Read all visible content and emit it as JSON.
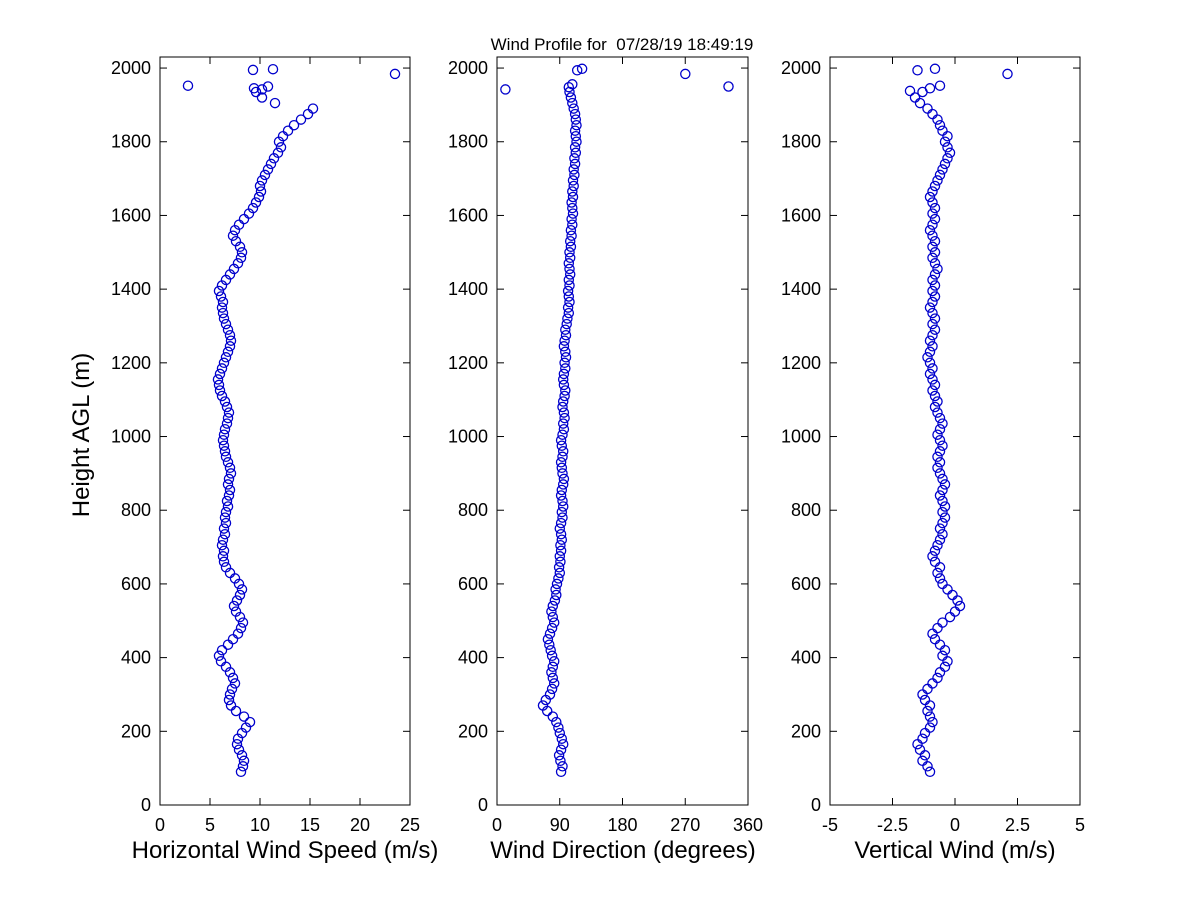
{
  "chart_data": {
    "type": "scatter",
    "title": "Wind Profile for  07/28/19 18:49:19",
    "ylabel": "Height AGL (m)",
    "ylim": [
      0,
      2000
    ],
    "yticks": [
      0,
      200,
      400,
      600,
      800,
      1000,
      1200,
      1400,
      1600,
      1800,
      2000
    ],
    "marker": {
      "shape": "circle-open",
      "color": "#0000CC",
      "size": 9
    },
    "heights": [
      90,
      105,
      120,
      135,
      150,
      165,
      180,
      195,
      210,
      225,
      240,
      255,
      270,
      285,
      300,
      315,
      330,
      345,
      360,
      375,
      390,
      405,
      420,
      435,
      450,
      465,
      480,
      495,
      510,
      525,
      540,
      555,
      570,
      585,
      600,
      615,
      630,
      645,
      660,
      675,
      690,
      705,
      720,
      735,
      750,
      765,
      780,
      795,
      810,
      825,
      840,
      855,
      870,
      885,
      900,
      915,
      930,
      945,
      960,
      975,
      990,
      1005,
      1020,
      1035,
      1050,
      1065,
      1080,
      1095,
      1110,
      1125,
      1140,
      1155,
      1170,
      1185,
      1200,
      1215,
      1230,
      1245,
      1260,
      1275,
      1290,
      1305,
      1320,
      1335,
      1350,
      1365,
      1380,
      1395,
      1410,
      1425,
      1440,
      1455,
      1470,
      1485,
      1500,
      1515,
      1530,
      1545,
      1560,
      1575,
      1590,
      1605,
      1620,
      1635,
      1650,
      1665,
      1680,
      1695,
      1710,
      1725,
      1740,
      1755,
      1770,
      1785,
      1800,
      1815,
      1830,
      1845,
      1860,
      1875,
      1890,
      1905,
      1920,
      1935
    ],
    "subplots": [
      {
        "id": "horizontal-wind-speed",
        "xlabel": "Horizontal Wind Speed (m/s)",
        "xlim": [
          0,
          25
        ],
        "xticks": [
          0,
          5,
          10,
          15,
          20,
          25
        ],
        "values": [
          8.1,
          8.3,
          8.4,
          8.2,
          7.9,
          7.7,
          7.8,
          8.2,
          8.6,
          9.0,
          8.4,
          7.6,
          7.1,
          6.9,
          7.0,
          7.2,
          7.5,
          7.3,
          7.0,
          6.6,
          6.1,
          5.9,
          6.2,
          6.8,
          7.3,
          7.8,
          8.1,
          8.3,
          8.0,
          7.6,
          7.4,
          7.7,
          8.0,
          8.2,
          7.9,
          7.5,
          7.0,
          6.6,
          6.4,
          6.3,
          6.4,
          6.2,
          6.3,
          6.5,
          6.4,
          6.6,
          6.5,
          6.6,
          6.8,
          6.7,
          6.9,
          7.0,
          6.8,
          6.9,
          7.1,
          7.0,
          6.8,
          6.6,
          6.5,
          6.4,
          6.3,
          6.4,
          6.5,
          6.7,
          6.8,
          6.9,
          6.7,
          6.5,
          6.2,
          6.0,
          5.9,
          5.8,
          6.0,
          6.2,
          6.4,
          6.6,
          6.8,
          7.0,
          7.1,
          7.0,
          6.8,
          6.6,
          6.4,
          6.3,
          6.2,
          6.3,
          6.1,
          5.9,
          6.2,
          6.6,
          7.0,
          7.4,
          7.8,
          8.1,
          8.2,
          8.0,
          7.6,
          7.3,
          7.5,
          7.9,
          8.4,
          8.9,
          9.3,
          9.6,
          9.9,
          10.1,
          10.0,
          10.2,
          10.5,
          10.8,
          11.1,
          11.4,
          11.8,
          12.1,
          11.9,
          12.3,
          12.8,
          13.4,
          14.1,
          14.8,
          15.3,
          11.5,
          10.2,
          9.6
        ],
        "extra_points": [
          [
            2.8,
            1952
          ],
          [
            10.8,
            1950
          ],
          [
            9.4,
            1945
          ],
          [
            10.2,
            1942
          ],
          [
            9.3,
            1995
          ],
          [
            11.3,
            1997
          ],
          [
            23.5,
            1984
          ]
        ]
      },
      {
        "id": "wind-direction",
        "xlabel": "Wind Direction (degrees)",
        "xlim": [
          0,
          360
        ],
        "xticks": [
          0,
          90,
          180,
          270,
          360
        ],
        "values": [
          92,
          94,
          91,
          89,
          92,
          95,
          93,
          90,
          88,
          85,
          80,
          72,
          66,
          70,
          76,
          79,
          82,
          80,
          78,
          80,
          82,
          79,
          77,
          75,
          73,
          76,
          79,
          82,
          80,
          78,
          80,
          83,
          85,
          84,
          86,
          88,
          90,
          89,
          91,
          90,
          92,
          91,
          93,
          92,
          90,
          92,
          94,
          93,
          95,
          94,
          92,
          93,
          95,
          96,
          94,
          93,
          92,
          94,
          95,
          93,
          92,
          94,
          96,
          95,
          97,
          96,
          94,
          95,
          97,
          98,
          96,
          95,
          96,
          98,
          97,
          99,
          98,
          96,
          97,
          99,
          98,
          100,
          101,
          103,
          102,
          104,
          103,
          102,
          104,
          103,
          105,
          104,
          103,
          105,
          104,
          106,
          105,
          107,
          106,
          108,
          107,
          109,
          108,
          107,
          109,
          108,
          110,
          109,
          111,
          110,
          112,
          111,
          113,
          112,
          114,
          113,
          112,
          114,
          113,
          112,
          110,
          108,
          106,
          104
        ],
        "extra_points": [
          [
            12,
            1942
          ],
          [
            103,
            1948
          ],
          [
            108,
            1956
          ],
          [
            332,
            1950
          ],
          [
            270,
            1984
          ],
          [
            115,
            1994
          ],
          [
            122,
            1998
          ]
        ]
      },
      {
        "id": "vertical-wind",
        "xlabel": "Vertical Wind (m/s)",
        "xlim": [
          -5,
          5
        ],
        "xticks": [
          -5,
          -2.5,
          0,
          2.5,
          5
        ],
        "values": [
          -1.0,
          -1.1,
          -1.3,
          -1.2,
          -1.4,
          -1.5,
          -1.3,
          -1.2,
          -1.0,
          -0.9,
          -1.0,
          -1.1,
          -1.0,
          -1.2,
          -1.3,
          -1.1,
          -0.9,
          -0.7,
          -0.6,
          -0.4,
          -0.3,
          -0.5,
          -0.4,
          -0.6,
          -0.8,
          -0.9,
          -0.7,
          -0.5,
          -0.2,
          0.0,
          0.2,
          0.1,
          -0.1,
          -0.3,
          -0.5,
          -0.6,
          -0.7,
          -0.6,
          -0.8,
          -0.9,
          -0.8,
          -0.7,
          -0.6,
          -0.5,
          -0.6,
          -0.5,
          -0.4,
          -0.5,
          -0.4,
          -0.5,
          -0.6,
          -0.5,
          -0.4,
          -0.5,
          -0.6,
          -0.7,
          -0.6,
          -0.7,
          -0.6,
          -0.5,
          -0.6,
          -0.7,
          -0.6,
          -0.5,
          -0.6,
          -0.7,
          -0.8,
          -0.7,
          -0.8,
          -0.9,
          -0.8,
          -0.9,
          -1.0,
          -0.9,
          -1.0,
          -1.1,
          -1.0,
          -0.9,
          -1.0,
          -0.9,
          -0.8,
          -0.9,
          -0.8,
          -0.9,
          -1.0,
          -0.9,
          -0.8,
          -0.9,
          -0.8,
          -0.9,
          -0.8,
          -0.7,
          -0.8,
          -0.9,
          -0.8,
          -0.9,
          -0.8,
          -0.9,
          -1.0,
          -0.9,
          -0.8,
          -0.9,
          -0.8,
          -0.9,
          -1.0,
          -0.9,
          -0.8,
          -0.7,
          -0.6,
          -0.5,
          -0.4,
          -0.3,
          -0.2,
          -0.3,
          -0.4,
          -0.3,
          -0.5,
          -0.6,
          -0.7,
          -0.9,
          -1.1,
          -1.4,
          -1.6,
          -1.3
        ],
        "extra_points": [
          [
            -1.8,
            1938
          ],
          [
            -1.0,
            1945
          ],
          [
            -0.6,
            1952
          ],
          [
            2.1,
            1984
          ],
          [
            -1.5,
            1994
          ],
          [
            -0.8,
            1998
          ]
        ]
      }
    ]
  }
}
